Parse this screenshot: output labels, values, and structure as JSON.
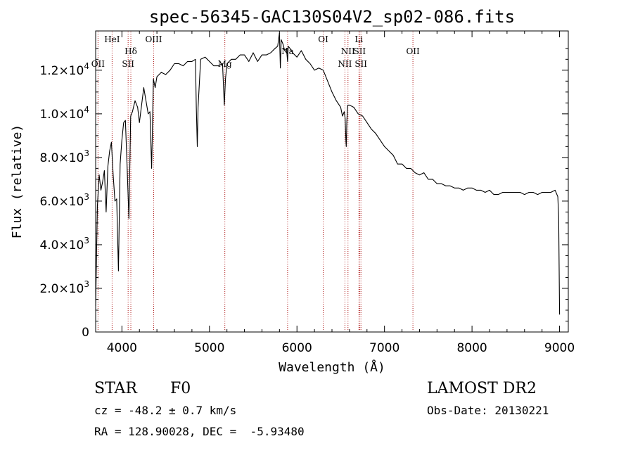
{
  "chart_data": {
    "type": "line",
    "title": "spec-56345-GAC130S04V2_sp02-086.fits",
    "xlabel": "Wavelength (Å)",
    "ylabel": "Flux (relative)",
    "xlim": [
      3700,
      9100
    ],
    "ylim": [
      0,
      13800
    ],
    "x_ticks": [
      4000,
      5000,
      6000,
      7000,
      8000,
      9000
    ],
    "x_tick_labels": [
      "4000",
      "5000",
      "6000",
      "7000",
      "8000",
      "9000"
    ],
    "y_ticks": [
      {
        "value": 0,
        "mantissa": "0",
        "exp": ""
      },
      {
        "value": 2000,
        "mantissa": "2.0×10",
        "exp": "3"
      },
      {
        "value": 4000,
        "mantissa": "4.0×10",
        "exp": "3"
      },
      {
        "value": 6000,
        "mantissa": "6.0×10",
        "exp": "3"
      },
      {
        "value": 8000,
        "mantissa": "8.0×10",
        "exp": "3"
      },
      {
        "value": 10000,
        "mantissa": "1.0×10",
        "exp": "4"
      },
      {
        "value": 12000,
        "mantissa": "1.2×10",
        "exp": "4"
      }
    ],
    "series": [
      {
        "x": [
          3700,
          3720,
          3740,
          3760,
          3780,
          3800,
          3820,
          3840,
          3860,
          3880,
          3900,
          3920,
          3940,
          3960,
          3980,
          4000,
          4020,
          4040,
          4060,
          4080,
          4100,
          4120,
          4150,
          4180,
          4200,
          4250,
          4300,
          4320,
          4340,
          4360,
          4380,
          4400,
          4450,
          4500,
          4550,
          4600,
          4650,
          4700,
          4750,
          4800,
          4840,
          4850,
          4861,
          4870,
          4900,
          4950,
          5000,
          5050,
          5100,
          5150,
          5170,
          5183,
          5200,
          5250,
          5300,
          5350,
          5400,
          5450,
          5500,
          5550,
          5600,
          5650,
          5700,
          5750,
          5780,
          5800,
          5810,
          5820,
          5840,
          5860,
          5880,
          5893,
          5900,
          5920,
          5950,
          6000,
          6050,
          6100,
          6150,
          6200,
          6250,
          6300,
          6350,
          6400,
          6450,
          6500,
          6520,
          6540,
          6550,
          6560,
          6563,
          6570,
          6580,
          6600,
          6650,
          6700,
          6750,
          6800,
          6850,
          6900,
          6950,
          7000,
          7050,
          7100,
          7150,
          7200,
          7250,
          7300,
          7350,
          7400,
          7450,
          7500,
          7550,
          7600,
          7650,
          7700,
          7750,
          7800,
          7850,
          7900,
          7950,
          8000,
          8050,
          8100,
          8150,
          8200,
          8250,
          8300,
          8350,
          8400,
          8450,
          8500,
          8550,
          8600,
          8650,
          8700,
          8750,
          8800,
          8850,
          8900,
          8950,
          8980,
          8990,
          9000
        ],
        "y": [
          1200,
          5800,
          7200,
          6500,
          6900,
          7400,
          5500,
          7600,
          8300,
          8700,
          7200,
          6000,
          6100,
          2800,
          7700,
          8800,
          9600,
          9700,
          7500,
          5200,
          9900,
          10100,
          10600,
          10300,
          9600,
          11200,
          10000,
          10100,
          7500,
          11600,
          11200,
          11700,
          11900,
          11800,
          12000,
          12300,
          12300,
          12200,
          12400,
          12400,
          12500,
          10300,
          8500,
          10300,
          12500,
          12600,
          12400,
          12200,
          12200,
          12300,
          10400,
          11600,
          12300,
          12500,
          12500,
          12700,
          12700,
          12400,
          12800,
          12400,
          12700,
          12700,
          12800,
          13000,
          13100,
          13700,
          12100,
          13400,
          13200,
          12900,
          13000,
          12400,
          13100,
          13000,
          12800,
          12600,
          12900,
          12500,
          12300,
          12000,
          12100,
          12000,
          11500,
          11000,
          10600,
          10300,
          9900,
          10100,
          9800,
          8700,
          8500,
          9700,
          10400,
          10400,
          10300,
          10000,
          9900,
          9600,
          9300,
          9100,
          8800,
          8500,
          8300,
          8100,
          7700,
          7700,
          7500,
          7500,
          7300,
          7200,
          7300,
          7000,
          7000,
          6800,
          6800,
          6700,
          6700,
          6600,
          6600,
          6500,
          6600,
          6600,
          6500,
          6500,
          6400,
          6500,
          6300,
          6300,
          6400,
          6400,
          6400,
          6400,
          6400,
          6300,
          6400,
          6400,
          6300,
          6400,
          6400,
          6400,
          6500,
          6200,
          5300,
          800
        ]
      }
    ],
    "line_markers": [
      {
        "label": "OII",
        "x": 3727,
        "row": 2
      },
      {
        "label": "HeI",
        "x": 3888,
        "row": 0
      },
      {
        "label": "SII",
        "x": 4071,
        "row": 2
      },
      {
        "label": "Hδ",
        "x": 4102,
        "row": 1
      },
      {
        "label": "OIII",
        "x": 4363,
        "row": 0
      },
      {
        "label": "Mg",
        "x": 5176,
        "row": 2
      },
      {
        "label": "Na",
        "x": 5893,
        "row": 1
      },
      {
        "label": "OI",
        "x": 6300,
        "row": 0
      },
      {
        "label": "NII",
        "x": 6548,
        "row": 2
      },
      {
        "label": "NII",
        "x": 6583,
        "row": 1
      },
      {
        "label": "Li",
        "x": 6708,
        "row": 0
      },
      {
        "label": "SII",
        "x": 6716,
        "row": 1
      },
      {
        "label": "SII",
        "x": 6731,
        "row": 2
      },
      {
        "label": "OII",
        "x": 7325,
        "row": 1
      }
    ],
    "grid": false,
    "line_color": "#000000",
    "marker_color": "#b22222"
  },
  "info": {
    "object_type": "STAR",
    "subclass": "F0",
    "survey": "LAMOST DR2",
    "cz": "cz = -48.2 ± 0.7 km/s",
    "radec": "RA = 128.90028, DEC =  -5.93480",
    "obs_date": "Obs-Date: 20130221"
  }
}
